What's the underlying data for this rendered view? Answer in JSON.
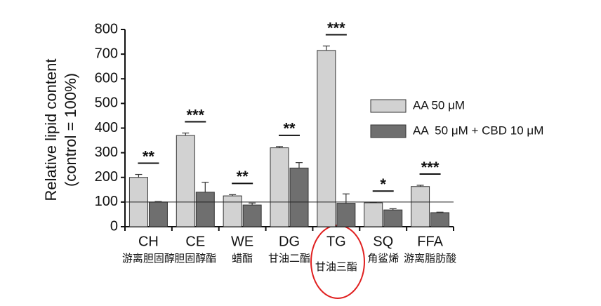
{
  "chart_data": {
    "type": "bar",
    "y_label": [
      "Relative lipid content",
      "(control = 100%)"
    ],
    "categories": [
      "CH",
      "CE",
      "WE",
      "DG",
      "TG",
      "SQ",
      "FFA"
    ],
    "series": [
      {
        "name": "AA 50 μM",
        "color": "#d2d2d2",
        "values": [
          200,
          370,
          125,
          320,
          715,
          97,
          163
        ],
        "errors": [
          12,
          10,
          5,
          5,
          18,
          2,
          5
        ]
      },
      {
        "name": "AA  50 μM + CBD 10 μM",
        "color": "#6f6f6f",
        "values": [
          100,
          140,
          88,
          238,
          95,
          68,
          57
        ],
        "errors": [
          2,
          40,
          8,
          22,
          38,
          5,
          2
        ]
      }
    ],
    "significance": [
      "**",
      "***",
      "**",
      "**",
      "***",
      "*",
      "***"
    ],
    "annotations": [
      "游离胆固醇",
      "胆固醇酯",
      "蜡酯",
      "甘油二酯",
      "甘油三酯",
      "角鲨烯",
      "游离脂肪酸"
    ],
    "reference_line": 100,
    "ylim": [
      0,
      800
    ],
    "yticks": [
      0,
      100,
      200,
      300,
      400,
      500,
      600,
      700,
      800
    ],
    "legend": "upper right"
  }
}
